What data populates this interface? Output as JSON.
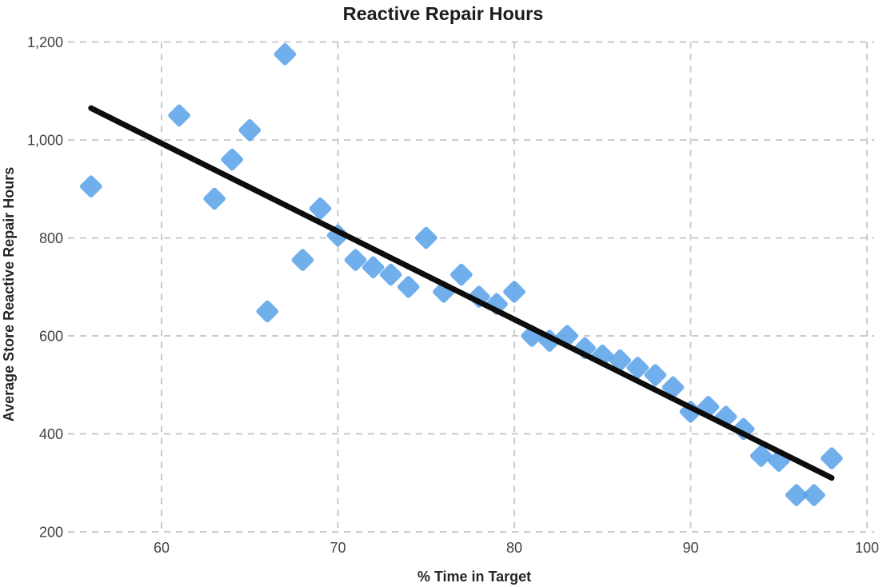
{
  "figure": {
    "title": "Reactive Repair Hours"
  },
  "chart_data": {
    "type": "scatter",
    "title": "Reactive Repair Hours",
    "xlabel": "% Time in Target",
    "ylabel": "Average Store Reactive Repair Hours",
    "xlim": [
      54.7,
      100.3
    ],
    "ylim": [
      200,
      1220
    ],
    "x_ticks": [
      60,
      70,
      80,
      90,
      100
    ],
    "x_tick_labels": [
      "60",
      "70",
      "80",
      "90",
      "100"
    ],
    "y_ticks": [
      200,
      400,
      600,
      800,
      1000,
      1200
    ],
    "y_tick_labels": [
      "200",
      "400",
      "600",
      "800",
      "1,000",
      "1,200"
    ],
    "grid": true,
    "legend": "none",
    "series": [
      {
        "name": "Average Store Reactive Repair Hours",
        "marker": "diamond",
        "color": "#57A1E9",
        "points": [
          [
            56,
            905
          ],
          [
            61,
            1050
          ],
          [
            63,
            880
          ],
          [
            64,
            960
          ],
          [
            65,
            1020
          ],
          [
            66,
            650
          ],
          [
            67,
            1175
          ],
          [
            68,
            755
          ],
          [
            69,
            860
          ],
          [
            70,
            805
          ],
          [
            71,
            755
          ],
          [
            72,
            740
          ],
          [
            73,
            725
          ],
          [
            74,
            700
          ],
          [
            75,
            800
          ],
          [
            76,
            690
          ],
          [
            77,
            725
          ],
          [
            78,
            680
          ],
          [
            79,
            665
          ],
          [
            80,
            690
          ],
          [
            81,
            600
          ],
          [
            82,
            590
          ],
          [
            83,
            600
          ],
          [
            84,
            575
          ],
          [
            85,
            560
          ],
          [
            86,
            550
          ],
          [
            87,
            535
          ],
          [
            88,
            520
          ],
          [
            89,
            495
          ],
          [
            90,
            445
          ],
          [
            91,
            455
          ],
          [
            92,
            435
          ],
          [
            93,
            410
          ],
          [
            94,
            355
          ],
          [
            95,
            345
          ],
          [
            96,
            275
          ],
          [
            97,
            275
          ],
          [
            98,
            350
          ]
        ]
      }
    ],
    "trend_line": {
      "name": "linear trend",
      "color": "#0d0d0d",
      "start": [
        56,
        1065
      ],
      "end": [
        98,
        310
      ]
    }
  },
  "style": {
    "marker_color": "#57A1E9",
    "trend_color": "#0d0d0d",
    "grid_color": "#cbcbcb",
    "tick_color": "#434343",
    "title_color": "#1c1c1c",
    "background": "#ffffff"
  }
}
